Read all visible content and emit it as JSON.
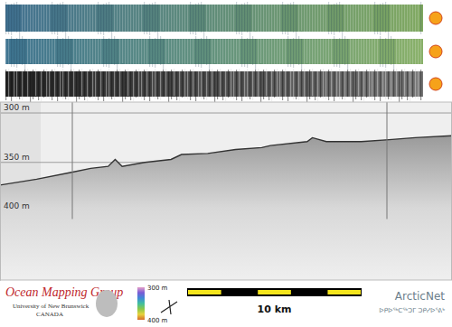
{
  "chart_data": {
    "type": "line",
    "x": [
      0,
      2.1,
      4.1,
      5.2,
      6.2,
      6.6,
      7.0,
      8.3,
      9.8,
      10.4,
      11.9,
      13.5,
      15.0,
      15.5,
      17.6,
      17.9,
      18.7,
      20.7,
      22.3,
      23.8,
      25.9
    ],
    "values": [
      373,
      367,
      360,
      356,
      354,
      347,
      354,
      350,
      347,
      342,
      341,
      337,
      335,
      333,
      329,
      325,
      329,
      329,
      327,
      325,
      323
    ],
    "color": "#333333",
    "xlim": [
      0,
      25.9
    ],
    "ylim": [
      289,
      469
    ],
    "yticks": [
      {
        "value": 300,
        "label": "300 m"
      },
      {
        "value": 350,
        "label": "350 m"
      },
      {
        "value": 400,
        "label": "400 m"
      }
    ],
    "grid": true,
    "tick_labels": "y"
  },
  "footer": {
    "org": "Ocean Mapping Group",
    "university": "University of New Brunswick",
    "country": "CANADA",
    "partner": "ArcticNet",
    "partner_syllabics": "ᐅᑭᐅᖅᑕᖅᑐᒥ ᑐᑭᓯᐅᕐᕕᒃ",
    "colorbar": {
      "range": [
        300,
        400
      ],
      "ticks": [
        {
          "value": 300,
          "label": "300 m"
        },
        {
          "value": 400,
          "label": "400 m"
        }
      ]
    },
    "scale_bar": {
      "length": 10,
      "segments": [
        0,
        2,
        4,
        6,
        8,
        10
      ],
      "label": "10 km"
    }
  }
}
